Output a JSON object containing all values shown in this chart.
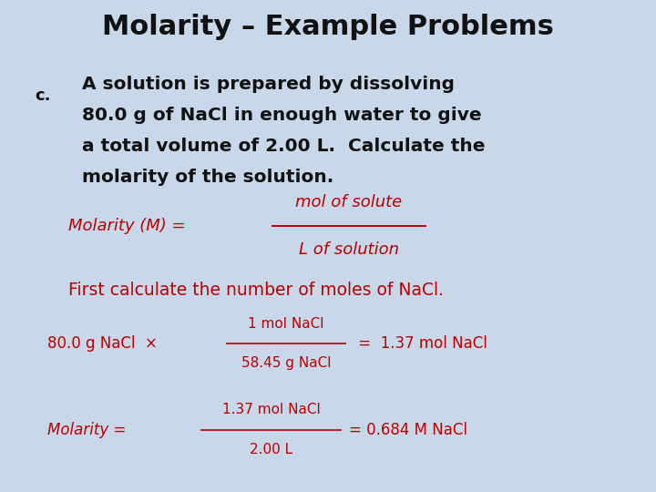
{
  "title": "Molarity – Example Problems",
  "title_fontsize": 22,
  "title_fontweight": "bold",
  "title_color": "#000000",
  "bg_color": "#c8d8ea",
  "text_color_black": "#111111",
  "text_color_red": "#bb0000",
  "label_c": "c.",
  "problem_lines": [
    "A solution is prepared by dissolving",
    "80.0 g of NaCl in enough water to give",
    "a total volume of 2.00 L.  Calculate the",
    "molarity of the solution."
  ],
  "problem_fontsize": 14.5,
  "molarity_formula_left": "Molarity (M) = ",
  "molarity_formula_num": "mol of solute",
  "molarity_formula_den": "L of solution",
  "first_calc_text": "First calculate the number of moles of NaCl.",
  "calc1_left": "80.0 g NaCl  ×",
  "calc1_num": "1 mol NaCl",
  "calc1_den": "58.45 g NaCl",
  "calc1_right": " =  1.37 mol NaCl",
  "calc2_left": "Molarity = ",
  "calc2_num": "1.37 mol NaCl",
  "calc2_den": "2.00 L",
  "calc2_right": "= 0.684 M NaCl"
}
